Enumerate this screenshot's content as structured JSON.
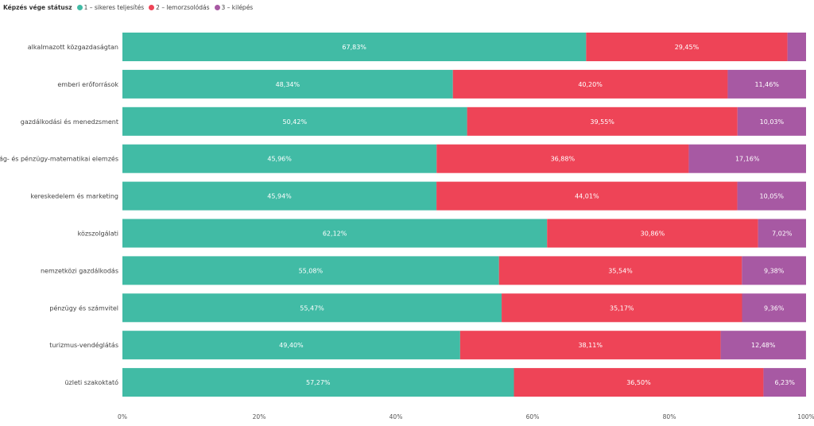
{
  "legend": {
    "title": "Képzés vége státusz",
    "items": [
      {
        "label": "1 – sikeres teljesítés",
        "color": "#41BBA5"
      },
      {
        "label": "2 – lemorzsolódás",
        "color": "#EE4457"
      },
      {
        "label": "3 – kilépés",
        "color": "#A759A3"
      }
    ]
  },
  "chart_data": {
    "type": "bar",
    "orientation": "horizontal",
    "stacked": "100%",
    "categories": [
      "alkalmazott közgazdaságtan",
      "emberi erőforrások",
      "gazdálkodási és menedzsment",
      "gazdaság- és pénzügy-matematikai elemzés",
      "kereskedelem és marketing",
      "közszolgálati",
      "nemzetközi gazdálkodás",
      "pénzügy és számvitel",
      "turizmus-vendéglátás",
      "üzleti szakoktató"
    ],
    "series": [
      {
        "name": "1 – sikeres teljesítés",
        "color": "#41BBA5",
        "values": [
          67.83,
          48.34,
          50.42,
          45.96,
          45.94,
          62.12,
          55.08,
          55.47,
          49.4,
          57.27
        ],
        "labels": [
          "67,83%",
          "48,34%",
          "50,42%",
          "45,96%",
          "45,94%",
          "62,12%",
          "55,08%",
          "55,47%",
          "49,40%",
          "57,27%"
        ]
      },
      {
        "name": "2 – lemorzsolódás",
        "color": "#EE4457",
        "values": [
          29.45,
          40.2,
          39.55,
          36.88,
          44.01,
          30.86,
          35.54,
          35.17,
          38.11,
          36.5
        ],
        "labels": [
          "29,45%",
          "40,20%",
          "39,55%",
          "36,88%",
          "44,01%",
          "30,86%",
          "35,54%",
          "35,17%",
          "38,11%",
          "36,50%"
        ]
      },
      {
        "name": "3 – kilépés",
        "color": "#A759A3",
        "values": [
          2.72,
          11.46,
          10.03,
          17.16,
          10.05,
          7.02,
          9.38,
          9.36,
          12.48,
          6.23
        ],
        "labels": [
          "",
          "11,46%",
          "10,03%",
          "17,16%",
          "10,05%",
          "7,02%",
          "9,38%",
          "9,36%",
          "12,48%",
          "6,23%"
        ]
      }
    ],
    "xticks": [
      "0%",
      "20%",
      "40%",
      "60%",
      "80%",
      "100%"
    ],
    "xlim": [
      0,
      100
    ],
    "grid": false,
    "legend_position": "top-left"
  }
}
